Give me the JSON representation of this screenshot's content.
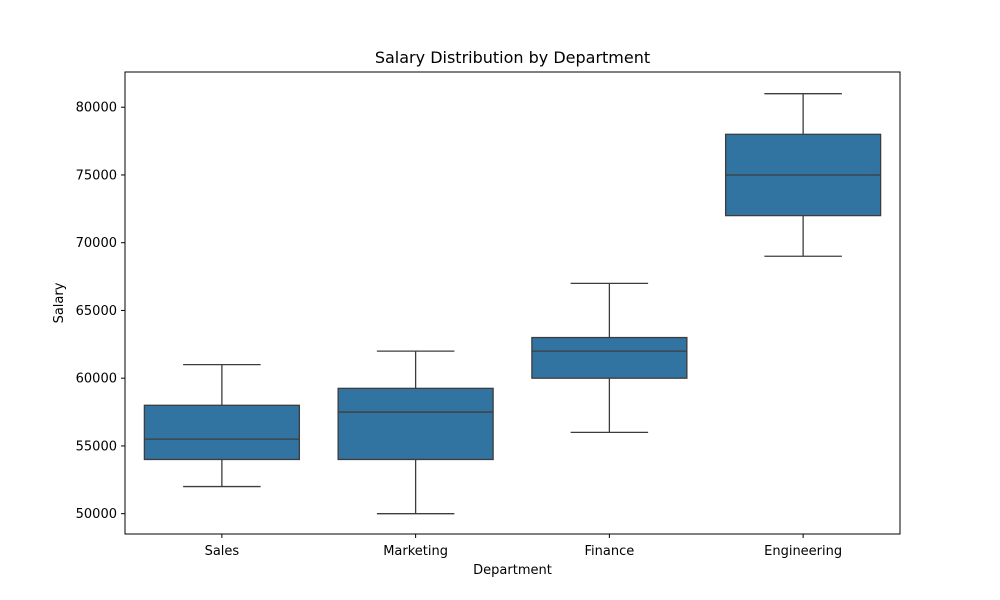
{
  "chart_data": {
    "type": "box",
    "title": "Salary Distribution by Department",
    "xlabel": "Department",
    "ylabel": "Salary",
    "ylim": [
      48500,
      82600
    ],
    "yticks": [
      50000,
      55000,
      60000,
      65000,
      70000,
      75000,
      80000
    ],
    "grid": false,
    "box_color": "#3274a1",
    "line_color": "#3d3d3d",
    "categories": [
      "Sales",
      "Marketing",
      "Finance",
      "Engineering"
    ],
    "boxes": [
      {
        "category": "Sales",
        "whisker_low": 52000,
        "q1": 54000,
        "median": 55500,
        "q3": 58000,
        "whisker_high": 61000
      },
      {
        "category": "Marketing",
        "whisker_low": 50000,
        "q1": 54000,
        "median": 57500,
        "q3": 59250,
        "whisker_high": 62000
      },
      {
        "category": "Finance",
        "whisker_low": 56000,
        "q1": 60000,
        "median": 62000,
        "q3": 63000,
        "whisker_high": 67000
      },
      {
        "category": "Engineering",
        "whisker_low": 69000,
        "q1": 72000,
        "median": 75000,
        "q3": 78000,
        "whisker_high": 81000
      }
    ]
  }
}
